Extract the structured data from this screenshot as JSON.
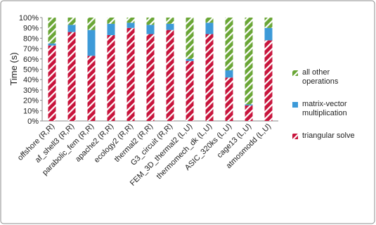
{
  "chart_data": {
    "type": "stacked-bar",
    "y_label": "Time (s)",
    "categories": [
      "offshore (R,R)",
      "af_shell3 (R,R)",
      "parabolic_fem (R,R)",
      "apache2 (R,R)",
      "ecology2 (R,R)",
      "thermal2 (R,R)",
      "G3_circuit (R,R)",
      "FEM_3D_thermal2 (L,U)",
      "thermomech_dk (L,U)",
      "ASIC_320ks (L,U)",
      "cage13 (L,U)",
      "atmosmodd (L,U)"
    ],
    "series": [
      {
        "name": "triangular solve",
        "color": "#c8143c",
        "hatch": true,
        "values": [
          73,
          86,
          63,
          83,
          90,
          84,
          88,
          58,
          84,
          42,
          15,
          78
        ]
      },
      {
        "name": "matrix-vector multiplication",
        "color": "#3d9ad8",
        "hatch": false,
        "values": [
          2,
          7,
          25,
          11,
          5,
          9,
          6,
          2,
          11,
          7,
          1,
          12
        ]
      },
      {
        "name": "all other operations",
        "color": "#6aa636",
        "hatch": true,
        "values": [
          25,
          7,
          12,
          6,
          5,
          7,
          6,
          40,
          5,
          51,
          84,
          10
        ]
      }
    ],
    "ylim": [
      0,
      100
    ],
    "yticks": [
      {
        "value": 0,
        "label": "0%"
      },
      {
        "value": 10,
        "label": "10%"
      },
      {
        "value": 20,
        "label": "20%"
      },
      {
        "value": 30,
        "label": "30%"
      },
      {
        "value": 40,
        "label": "40%"
      },
      {
        "value": 50,
        "label": "50%"
      },
      {
        "value": 60,
        "label": "60%"
      },
      {
        "value": 70,
        "label": "70%"
      },
      {
        "value": 80,
        "label": "80%"
      },
      {
        "value": 90,
        "label": "90%"
      },
      {
        "value": 100,
        "label": "100%"
      }
    ],
    "legend": "right"
  }
}
